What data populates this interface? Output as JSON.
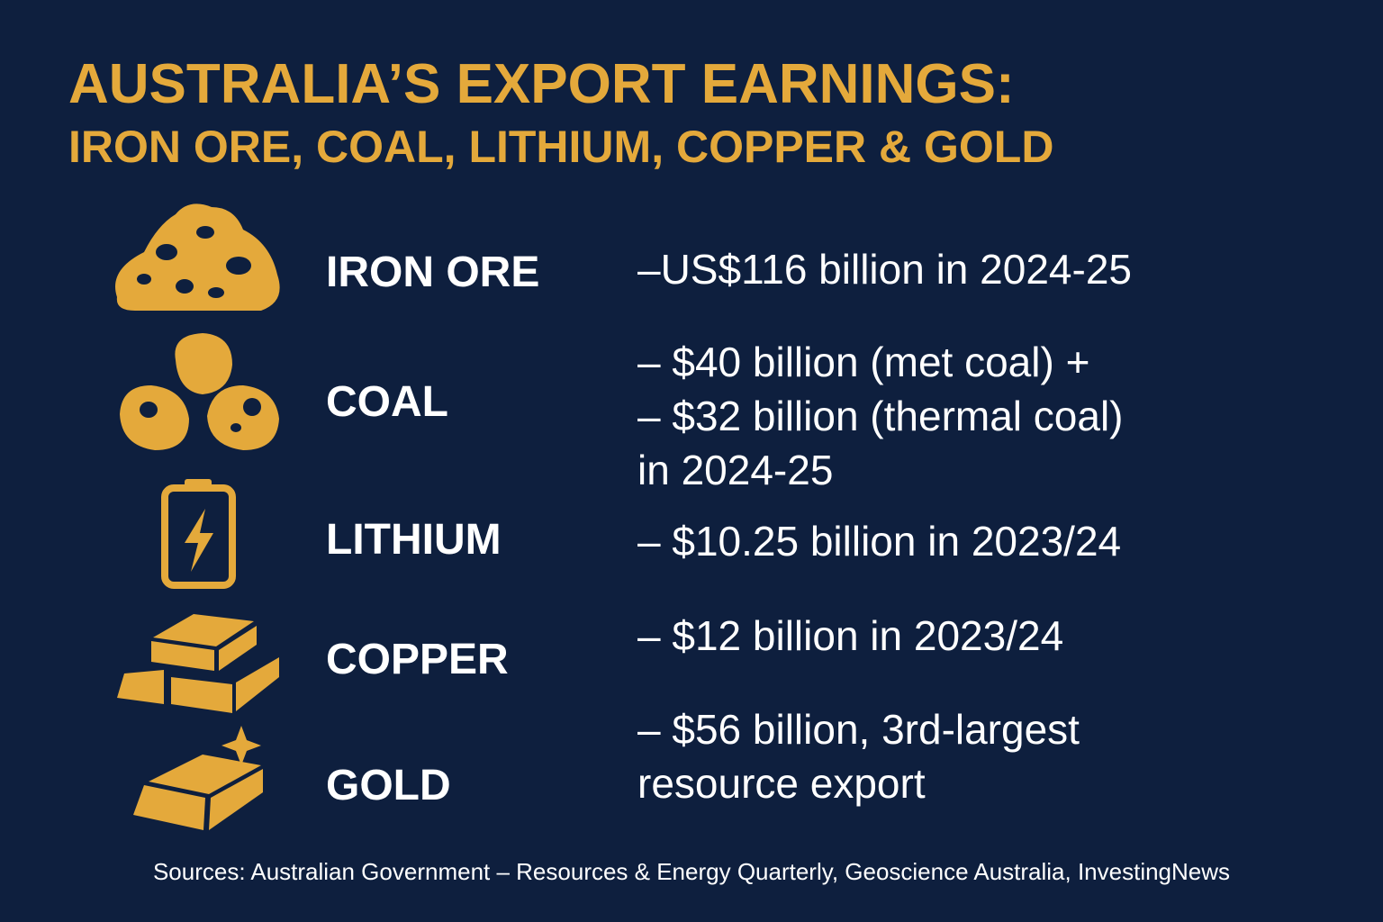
{
  "header": {
    "title": "AUSTRALIA’S EXPORT EARNINGS:",
    "subtitle": "IRON ORE, COAL, LITHIUM, COPPER & GOLD"
  },
  "items": [
    {
      "name": "IRON ORE",
      "lines": [
        "–US$116 billion in 2024-25"
      ]
    },
    {
      "name": "COAL",
      "lines": [
        "– $40 billion (met coal) +",
        "– $32 billion (thermal coal)",
        "in 2024-25"
      ]
    },
    {
      "name": "LITHIUM",
      "lines": [
        "– $10.25 billion in 2023/24"
      ]
    },
    {
      "name": "COPPER",
      "lines": [
        "– $12 billion in 2023/24"
      ]
    },
    {
      "name": "GOLD",
      "lines": [
        "– $56 billion, 3rd-largest",
        "resource export"
      ]
    }
  ],
  "footer": {
    "sources": "Sources: Australian Government – Resources & Energy Quarterly, Geoscience Australia, InvestingNews"
  }
}
